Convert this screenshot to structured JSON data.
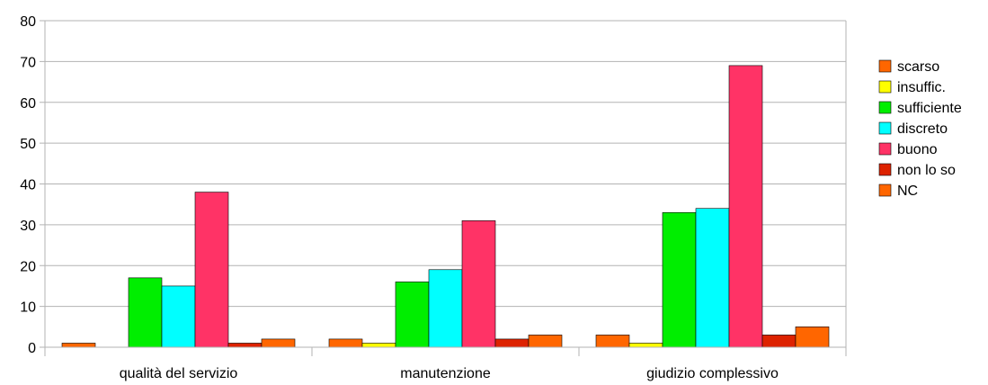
{
  "chart_data": {
    "type": "bar",
    "categories": [
      "qualità del servizio",
      "manutenzione",
      "giudizio complessivo"
    ],
    "series": [
      {
        "name": "scarso",
        "color": "#ff6600",
        "values": [
          1,
          2,
          3
        ]
      },
      {
        "name": "insuffic.",
        "color": "#ffff00",
        "values": [
          0,
          1,
          1
        ]
      },
      {
        "name": "sufficiente",
        "color": "#00ee00",
        "values": [
          17,
          16,
          33
        ]
      },
      {
        "name": "discreto",
        "color": "#00ffff",
        "values": [
          15,
          19,
          34
        ]
      },
      {
        "name": "buono",
        "color": "#ff3366",
        "values": [
          38,
          31,
          69
        ]
      },
      {
        "name": "non lo so",
        "color": "#dd2200",
        "values": [
          1,
          2,
          3
        ]
      },
      {
        "name": "NC",
        "color": "#ff6600",
        "values": [
          2,
          3,
          5
        ]
      }
    ],
    "yticks": [
      0,
      10,
      20,
      30,
      40,
      50,
      60,
      70,
      80
    ],
    "ylim": [
      0,
      80
    ],
    "grid": true,
    "legend_position": "right",
    "title": "",
    "xlabel": "",
    "ylabel": ""
  }
}
